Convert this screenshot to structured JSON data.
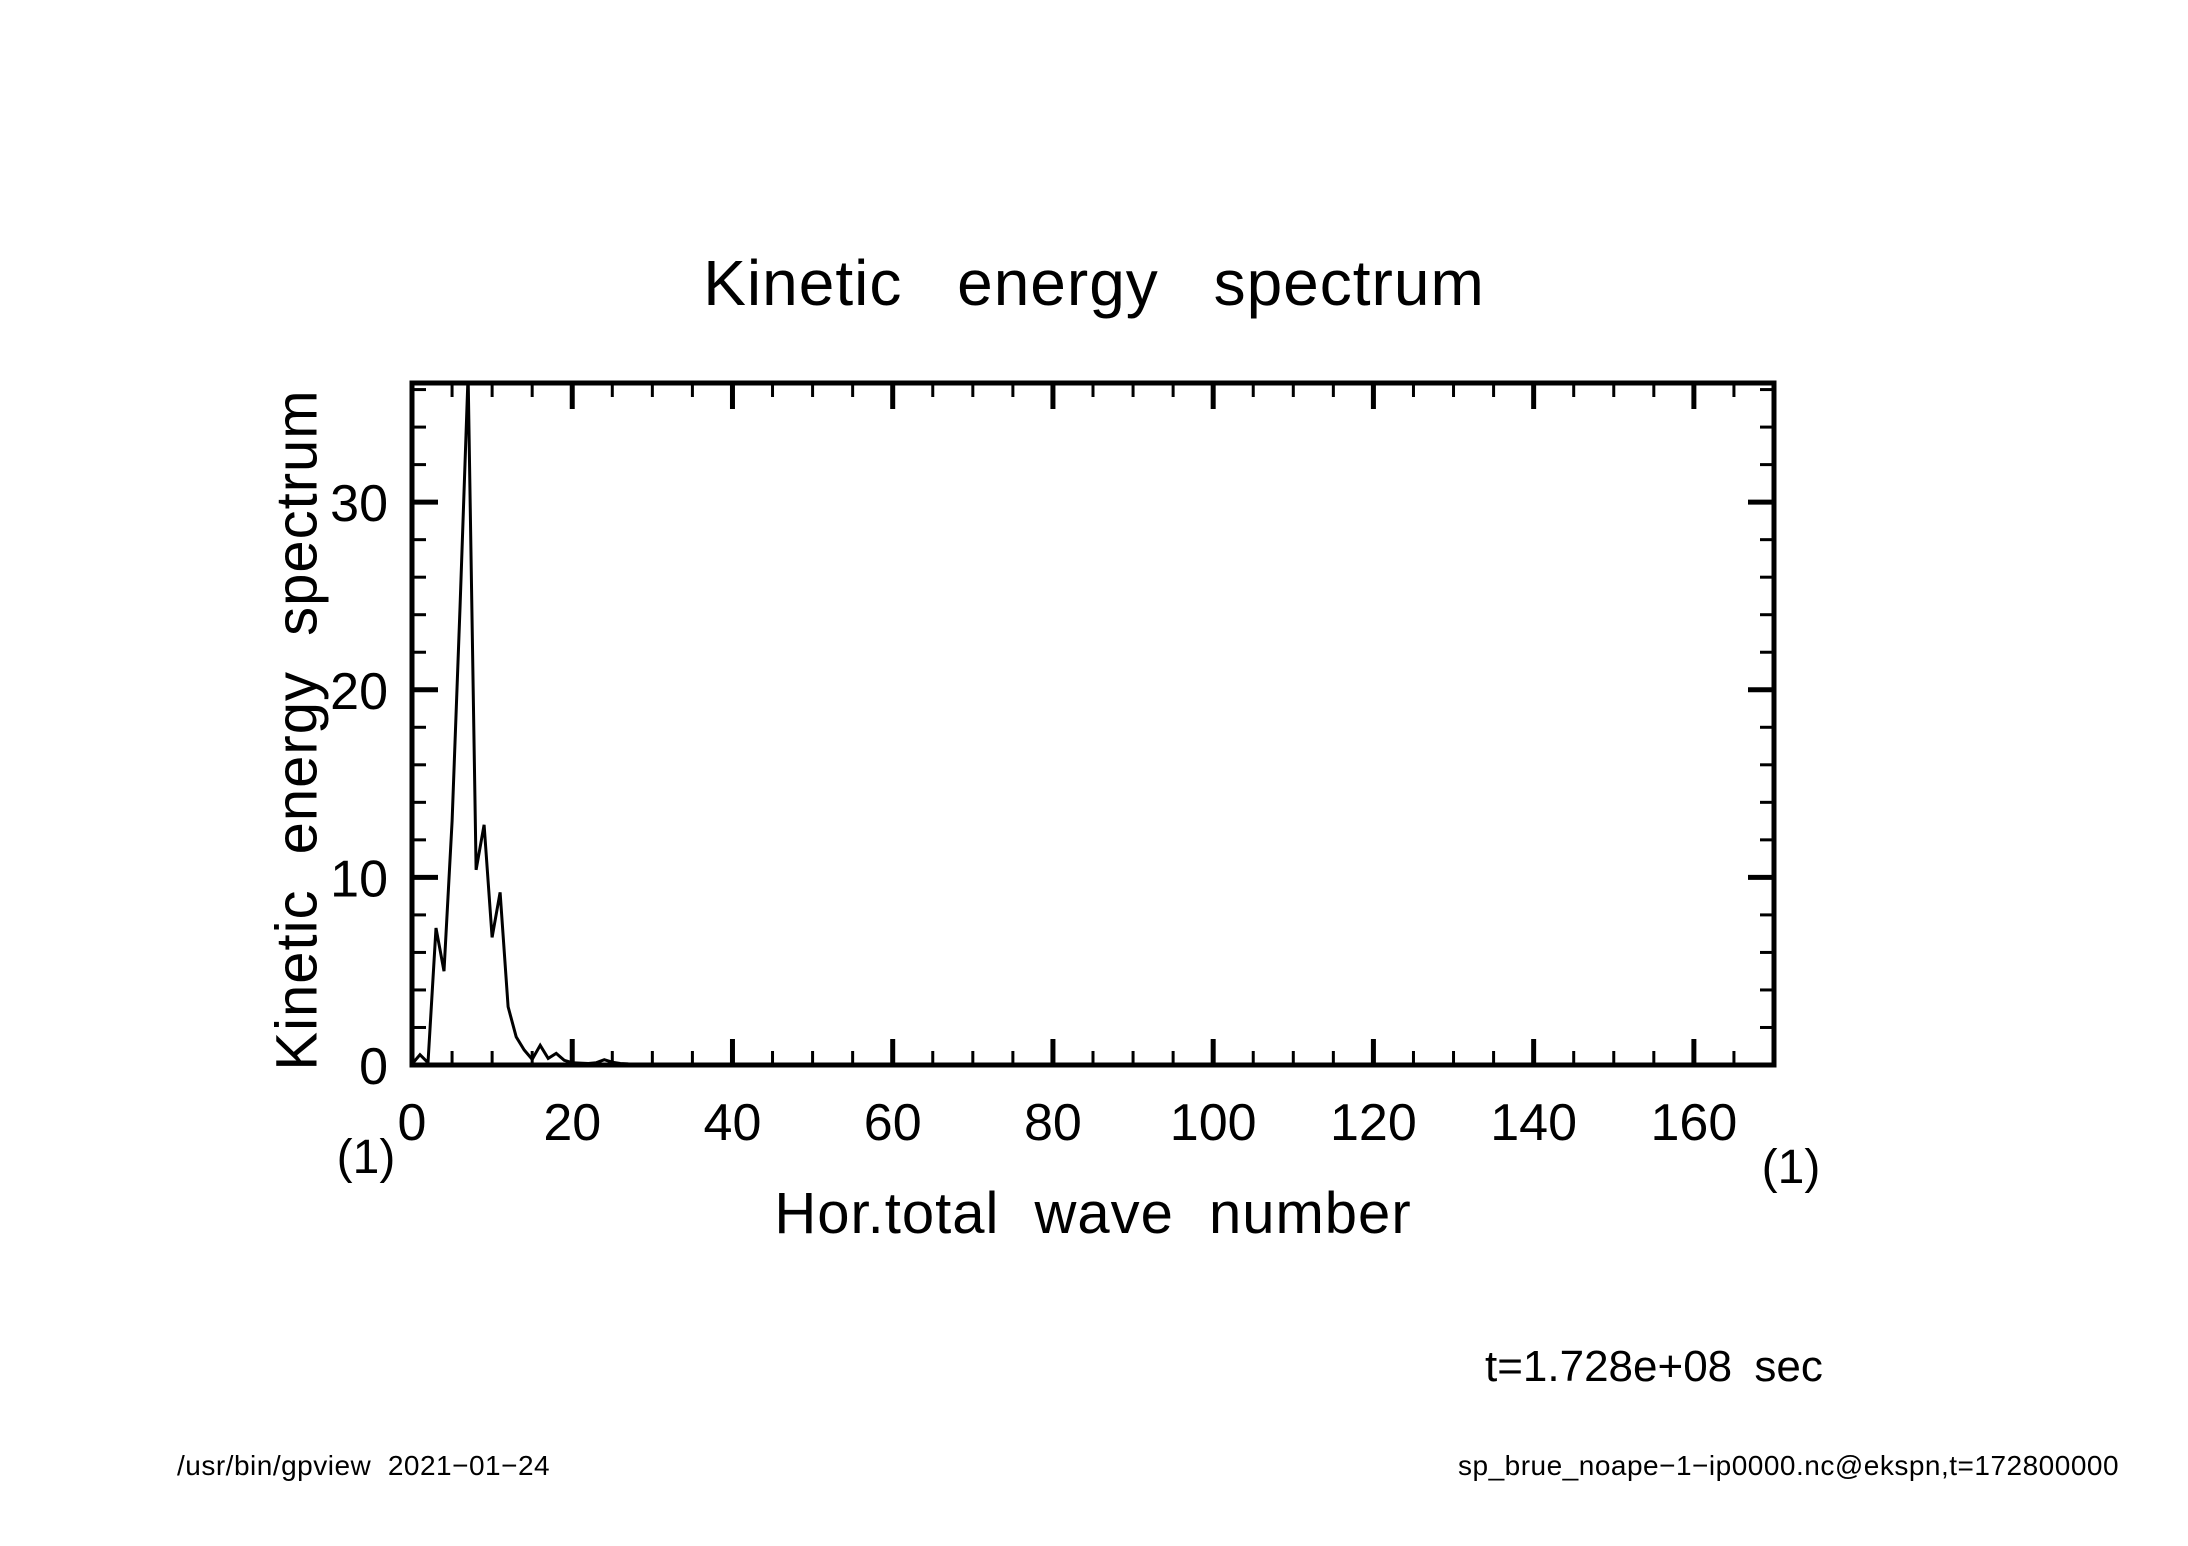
{
  "page": {
    "background": "#ffffff",
    "foreground": "#000000"
  },
  "title": "Kinetic energy spectrum",
  "axes": {
    "x_label": "Hor.total wave number",
    "y_label": "Kinetic energy spectrum",
    "x_unit_label": "(1)",
    "y_unit_label": "(1)"
  },
  "annotation": {
    "time_label": "t=1.728e+08 sec"
  },
  "footer": {
    "left": "/usr/bin/gpview  2021−01−24",
    "right": "sp_brue_noape−1−ip0000.nc@ekspn,t=172800000"
  },
  "chart_data": {
    "type": "line",
    "title": "Kinetic energy spectrum",
    "xlabel": "Hor.total wave number",
    "ylabel": "Kinetic energy spectrum",
    "x_unit": "(1)",
    "y_unit": "(1)",
    "xlim": [
      0,
      170
    ],
    "ylim": [
      0,
      36.35
    ],
    "x_major_tick_interval": 20,
    "x_minor_tick_interval": 5,
    "y_major_tick_interval": 10,
    "y_minor_tick_interval": 2,
    "x_tick_labels": [
      0,
      20,
      40,
      60,
      80,
      100,
      120,
      140,
      160
    ],
    "y_tick_labels": [
      0,
      10,
      20,
      30
    ],
    "grid": false,
    "legend": null,
    "line_color": "#000000",
    "peak_clipped_at_frame_top": true,
    "series": [
      {
        "name": "kinetic energy spectrum",
        "x": [
          0,
          1,
          2,
          3,
          4,
          5,
          6,
          7,
          8,
          9,
          10,
          11,
          12,
          13,
          14,
          15,
          16,
          17,
          18,
          19,
          20,
          21,
          22,
          23,
          24,
          25,
          26,
          27,
          28,
          29,
          30,
          35,
          40,
          50,
          60,
          80,
          100,
          120,
          140,
          160,
          170
        ],
        "y": [
          0.05,
          0.55,
          0.12,
          7.3,
          5.0,
          13.0,
          24.5,
          36.8,
          10.4,
          12.8,
          6.8,
          9.2,
          3.1,
          1.5,
          0.8,
          0.3,
          1.05,
          0.35,
          0.62,
          0.25,
          0.12,
          0.1,
          0.08,
          0.12,
          0.28,
          0.15,
          0.08,
          0.06,
          0.05,
          0.05,
          0.04,
          0.03,
          0.02,
          0.02,
          0.01,
          0.01,
          0.01,
          0.01,
          0.01,
          0.01,
          0.01
        ]
      }
    ]
  }
}
